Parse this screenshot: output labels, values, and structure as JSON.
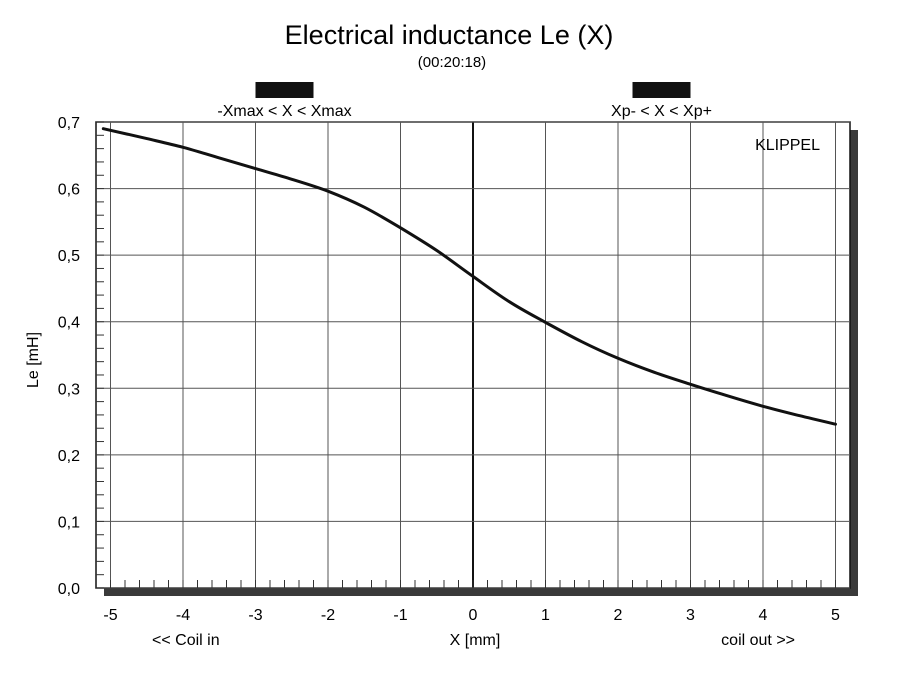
{
  "chart_data": {
    "type": "line",
    "title": "Electrical inductance Le (X)",
    "subtitle": "(00:20:18)",
    "xlabel": "X [mm]",
    "ylabel": "Le [mH]",
    "xlim": [
      -5.2,
      5.2
    ],
    "ylim": [
      0,
      0.7
    ],
    "x_ticks": [
      "-5",
      "-4",
      "-3",
      "-2",
      "-1",
      "0",
      "1",
      "2",
      "3",
      "4",
      "5"
    ],
    "y_ticks": [
      "0,0",
      "0,1",
      "0,2",
      "0,3",
      "0,4",
      "0,5",
      "0,6",
      "0,7"
    ],
    "grid": true,
    "x_left_note": "<< Coil in",
    "x_right_note": "coil out >>",
    "watermark": "KLIPPEL",
    "ranges": [
      {
        "label": "-Xmax < X < Xmax",
        "from": -3.0,
        "to": -2.2
      },
      {
        "label": "Xp- < X < Xp+",
        "from": 2.2,
        "to": 3.0
      }
    ],
    "series": [
      {
        "x": [
          -5.1,
          -4.5,
          -4.0,
          -3.5,
          -3.0,
          -2.5,
          -2.0,
          -1.5,
          -1.0,
          -0.5,
          0.0,
          0.5,
          1.0,
          1.5,
          2.0,
          2.5,
          3.0,
          3.5,
          4.0,
          4.5,
          5.0
        ],
        "y": [
          0.69,
          0.675,
          0.662,
          0.646,
          0.63,
          0.614,
          0.596,
          0.572,
          0.541,
          0.507,
          0.468,
          0.43,
          0.399,
          0.37,
          0.345,
          0.324,
          0.306,
          0.289,
          0.273,
          0.259,
          0.246
        ]
      }
    ]
  }
}
